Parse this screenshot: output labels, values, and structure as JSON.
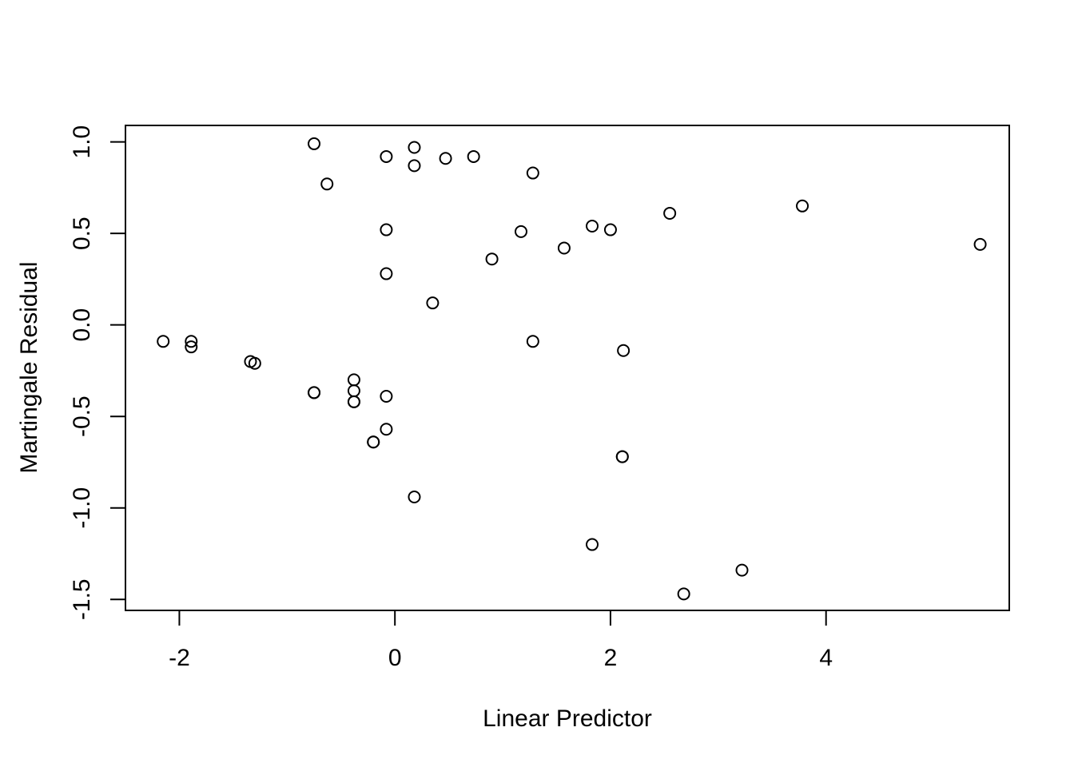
{
  "chart_data": {
    "type": "scatter",
    "title": "",
    "xlabel": "Linear Predictor",
    "ylabel": "Martingale Residual",
    "xlim": [
      -2.5,
      5.7
    ],
    "ylim": [
      -1.56,
      1.09
    ],
    "x_ticks": [
      -2,
      0,
      2,
      4
    ],
    "x_tick_labels": [
      "-2",
      "0",
      "2",
      "4"
    ],
    "y_ticks": [
      -1.5,
      -1.0,
      -0.5,
      0.0,
      0.5,
      1.0
    ],
    "y_tick_labels": [
      "-1.5",
      "-1.0",
      "-0.5",
      "0.0",
      "0.5",
      "1.0"
    ],
    "grid": false,
    "marker": "open-circle",
    "color": "#000000",
    "points": [
      {
        "x": -0.75,
        "y": 0.99
      },
      {
        "x": -0.63,
        "y": 0.77
      },
      {
        "x": -0.08,
        "y": 0.92
      },
      {
        "x": 0.18,
        "y": 0.97
      },
      {
        "x": 0.18,
        "y": 0.87
      },
      {
        "x": 0.47,
        "y": 0.91
      },
      {
        "x": 0.73,
        "y": 0.92
      },
      {
        "x": 1.28,
        "y": 0.83
      },
      {
        "x": -0.08,
        "y": 0.52
      },
      {
        "x": -0.08,
        "y": 0.28
      },
      {
        "x": 0.35,
        "y": 0.12
      },
      {
        "x": 0.9,
        "y": 0.36
      },
      {
        "x": 1.17,
        "y": 0.51
      },
      {
        "x": 1.57,
        "y": 0.42
      },
      {
        "x": 1.83,
        "y": 0.54
      },
      {
        "x": 2.0,
        "y": 0.52
      },
      {
        "x": 2.55,
        "y": 0.61
      },
      {
        "x": 3.78,
        "y": 0.65
      },
      {
        "x": 5.43,
        "y": 0.44
      },
      {
        "x": -2.15,
        "y": -0.09
      },
      {
        "x": -1.89,
        "y": -0.09
      },
      {
        "x": -1.89,
        "y": -0.12
      },
      {
        "x": -1.34,
        "y": -0.2
      },
      {
        "x": -1.3,
        "y": -0.21
      },
      {
        "x": -0.75,
        "y": -0.37
      },
      {
        "x": -0.75,
        "y": -0.37
      },
      {
        "x": -0.38,
        "y": -0.3
      },
      {
        "x": -0.38,
        "y": -0.36
      },
      {
        "x": -0.38,
        "y": -0.42
      },
      {
        "x": -0.38,
        "y": -0.42
      },
      {
        "x": -0.08,
        "y": -0.39
      },
      {
        "x": -0.08,
        "y": -0.57
      },
      {
        "x": -0.2,
        "y": -0.64
      },
      {
        "x": -0.2,
        "y": -0.64
      },
      {
        "x": 1.28,
        "y": -0.09
      },
      {
        "x": 2.12,
        "y": -0.14
      },
      {
        "x": 2.11,
        "y": -0.72
      },
      {
        "x": 2.11,
        "y": -0.72
      },
      {
        "x": 0.18,
        "y": -0.94
      },
      {
        "x": 1.83,
        "y": -1.2
      },
      {
        "x": 2.68,
        "y": -1.47
      },
      {
        "x": 3.22,
        "y": -1.34
      }
    ]
  }
}
